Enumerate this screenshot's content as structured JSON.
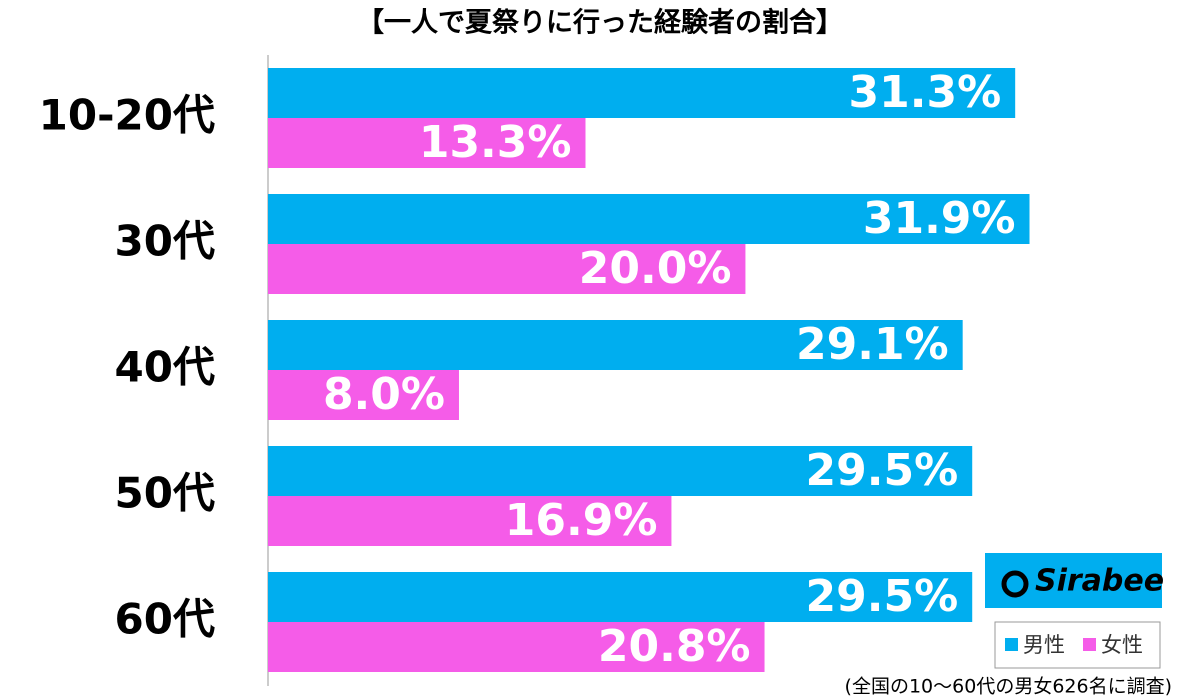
{
  "chart_data": {
    "type": "hbar",
    "title": "【一人で夏祭りに行った経験者の割合】",
    "categories": [
      "10-20代",
      "30代",
      "40代",
      "50代",
      "60代"
    ],
    "series": [
      {
        "name": "男性",
        "color": "#00aeef",
        "values": [
          31.3,
          31.9,
          29.1,
          29.5,
          29.5
        ],
        "value_labels": [
          "31.3%",
          "31.9%",
          "29.1%",
          "29.5%",
          "29.5%"
        ]
      },
      {
        "name": "女性",
        "color": "#f55ce8",
        "values": [
          13.3,
          20.0,
          8.0,
          16.9,
          20.8
        ],
        "value_labels": [
          "13.3%",
          "20.0%",
          "8.0%",
          "16.9%",
          "20.8%"
        ]
      }
    ],
    "xlim": [
      0,
      39
    ],
    "logo": "Sirabee",
    "note": "(全国の10～60代の男女626名に調査)"
  }
}
